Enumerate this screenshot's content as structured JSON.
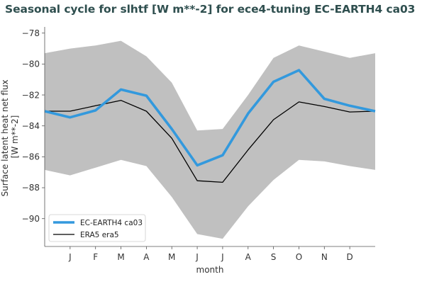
{
  "chart_data": {
    "type": "line",
    "title": "Seasonal cycle for slhtf [W m**-2] for ece4-tuning EC-EARTH4 ca03",
    "xlabel": "month",
    "ylabel_lines": [
      "Surface latent heat net flux",
      "[W m**-2]"
    ],
    "categories": [
      "J",
      "F",
      "M",
      "A",
      "M",
      "J",
      "J",
      "A",
      "S",
      "O",
      "N",
      "D"
    ],
    "ylim": [
      -91.8,
      -77.6
    ],
    "yticks": [
      -78,
      -80,
      -82,
      -84,
      -86,
      -88,
      -90
    ],
    "ytick_labels": [
      "−78",
      "−80",
      "−82",
      "−84",
      "−86",
      "−88",
      "−90"
    ],
    "edge_values": {
      "EC-EARTH4 ca03": [
        -83.05,
        -83.05
      ],
      "ERA5 era5": [
        -83.05,
        -83.05
      ],
      "band_upper": [
        -79.3,
        -79.3
      ],
      "band_lower": [
        -86.85,
        -86.85
      ]
    },
    "band": {
      "upper": [
        -79.0,
        -78.8,
        -78.5,
        -79.5,
        -81.2,
        -84.3,
        -84.2,
        -82.0,
        -79.6,
        -78.8,
        -79.2,
        -79.6
      ],
      "lower": [
        -87.2,
        -86.7,
        -86.2,
        -86.6,
        -88.6,
        -91.0,
        -91.3,
        -89.2,
        -87.5,
        -86.2,
        -86.3,
        -86.6
      ],
      "color": "#c0c0c0"
    },
    "series": [
      {
        "name": "EC-EARTH4 ca03",
        "color": "#3399dd",
        "values": [
          -83.45,
          -83.0,
          -81.65,
          -82.05,
          -84.2,
          -86.55,
          -85.9,
          -83.2,
          -81.15,
          -80.4,
          -82.25,
          -82.7
        ]
      },
      {
        "name": "ERA5 era5",
        "color": "#000000",
        "values": [
          -83.05,
          -82.7,
          -82.35,
          -83.05,
          -84.8,
          -87.55,
          -87.65,
          -85.55,
          -83.6,
          -82.45,
          -82.75,
          -83.1
        ]
      }
    ],
    "legend_position": "lower-left",
    "grid": false
  }
}
